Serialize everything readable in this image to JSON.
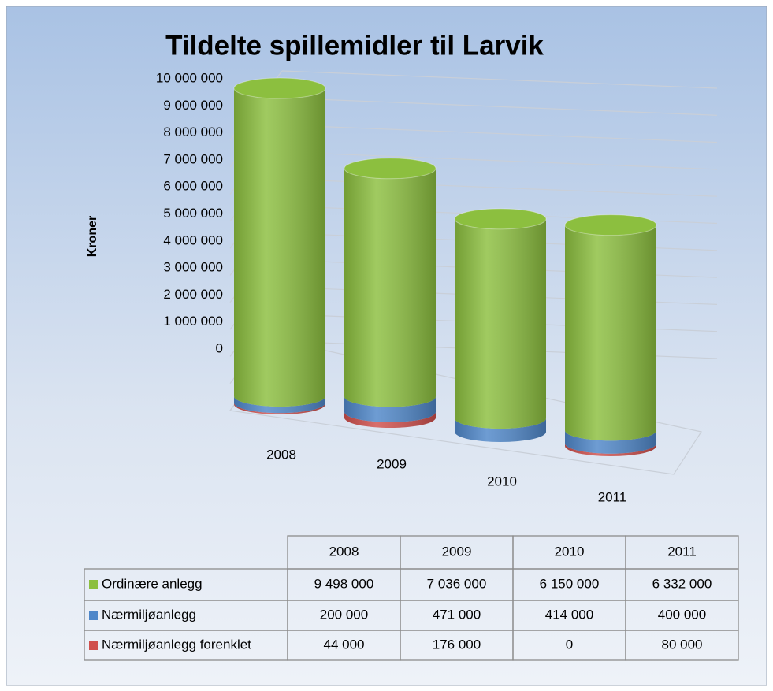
{
  "chart_data": {
    "type": "cylinder3d",
    "title": "Tildelte spillemidler til Larvik",
    "ylabel": "Kroner",
    "categories": [
      "2008",
      "2009",
      "2010",
      "2011"
    ],
    "series": [
      {
        "name": "Nærmiljøanlegg forenklet",
        "color": "#d0504d",
        "values": [
          44000,
          176000,
          0,
          80000
        ],
        "value_labels": [
          "44 000",
          "176 000",
          "0",
          "80 000"
        ]
      },
      {
        "name": "Nærmiljøanlegg",
        "color": "#4f87c9",
        "values": [
          200000,
          471000,
          414000,
          400000
        ],
        "value_labels": [
          "200 000",
          "471 000",
          "414 000",
          "400 000"
        ]
      },
      {
        "name": "Ordinære anlegg",
        "color": "#8cbf3f",
        "values": [
          9498000,
          7036000,
          6150000,
          6332000
        ],
        "value_labels": [
          "9 498 000",
          "7 036 000",
          "6 150 000",
          "6 332 000"
        ]
      }
    ],
    "stacked": true,
    "ylim": [
      0,
      10000000
    ],
    "yticks": [
      0,
      {
        "value": 1000000,
        "label": "1 000 000"
      },
      {
        "value": 2000000,
        "label": "2 000 000"
      },
      {
        "value": 3000000,
        "label": "3 000 000"
      },
      {
        "value": 4000000,
        "label": "4 000 000"
      },
      {
        "value": 5000000,
        "label": "5 000 000"
      },
      {
        "value": 6000000,
        "label": "6 000 000"
      },
      {
        "value": 7000000,
        "label": "7 000 000"
      },
      {
        "value": 8000000,
        "label": "8 000 000"
      },
      {
        "value": 9000000,
        "label": "9 000 000"
      },
      {
        "value": 10000000,
        "label": "10 000 000"
      }
    ],
    "grid": true,
    "data_table": true
  }
}
